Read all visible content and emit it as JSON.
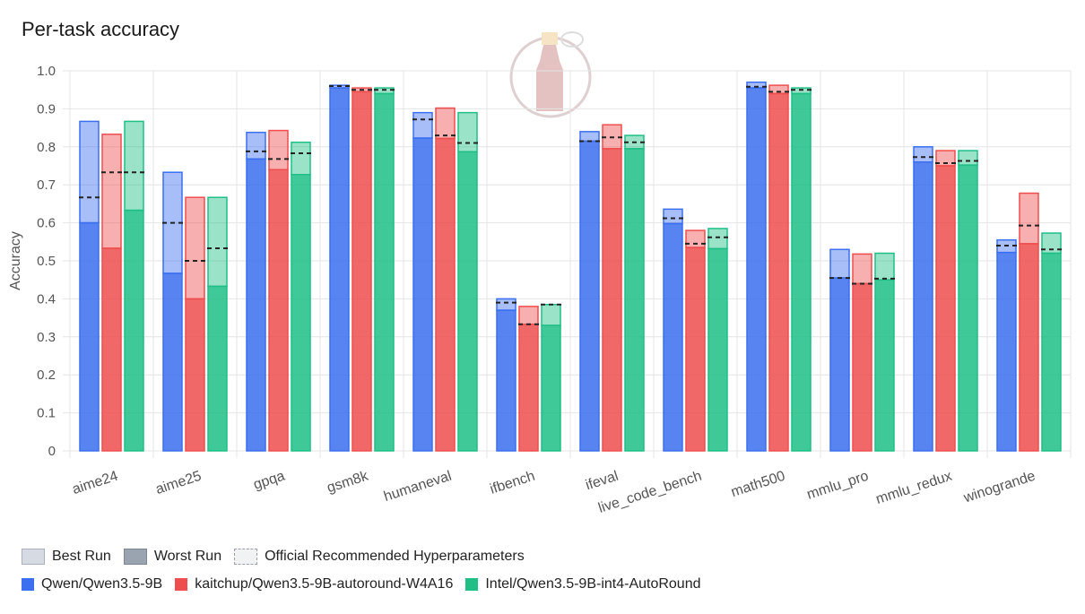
{
  "title": "Per-task accuracy",
  "colors": {
    "qwen": "#3b6ff0",
    "kaitchup": "#ef4e4e",
    "intel": "#1fbf86"
  },
  "legend": {
    "best_run": "Best Run",
    "worst_run": "Worst Run",
    "official": "Official Recommended Hyperparameters",
    "models": [
      "Qwen/Qwen3.5-9B",
      "kaitchup/Qwen3.5-9B-autoround-W4A16",
      "Intel/Qwen3.5-9B-int4-AutoRound"
    ]
  },
  "chart_data": {
    "type": "bar",
    "title": "Per-task accuracy",
    "ylabel": "Accuracy",
    "xlabel": "",
    "ylim": [
      0,
      1.0
    ],
    "yticks": [
      "0",
      "0.1",
      "0.2",
      "0.3",
      "0.4",
      "0.5",
      "0.6",
      "0.7",
      "0.8",
      "0.9",
      "1.0"
    ],
    "categories": [
      "aime24",
      "aime25",
      "gpqa",
      "gsm8k",
      "humaneval",
      "ifbench",
      "ifeval",
      "live_code_bench",
      "math500",
      "mmlu_pro",
      "mmlu_redux",
      "winogrande"
    ],
    "series": [
      {
        "name": "Qwen/Qwen3.5-9B",
        "color": "#3b6ff0",
        "best": [
          0.867,
          0.733,
          0.838,
          0.962,
          0.89,
          0.4,
          0.84,
          0.636,
          0.97,
          0.53,
          0.8,
          0.555
        ],
        "worst": [
          0.6,
          0.467,
          0.768,
          0.955,
          0.823,
          0.37,
          0.815,
          0.598,
          0.955,
          0.455,
          0.76,
          0.522
        ],
        "official": [
          0.667,
          0.6,
          0.788,
          0.96,
          0.872,
          0.39,
          0.815,
          0.612,
          0.958,
          0.455,
          0.773,
          0.54
        ]
      },
      {
        "name": "kaitchup/Qwen3.5-9B-autoround-W4A16",
        "color": "#ef4e4e",
        "best": [
          0.833,
          0.667,
          0.843,
          0.955,
          0.902,
          0.38,
          0.858,
          0.58,
          0.962,
          0.518,
          0.79,
          0.678
        ],
        "worst": [
          0.533,
          0.4,
          0.74,
          0.945,
          0.822,
          0.333,
          0.795,
          0.535,
          0.94,
          0.44,
          0.75,
          0.545
        ],
        "official": [
          0.733,
          0.5,
          0.768,
          0.95,
          0.83,
          0.333,
          0.825,
          0.545,
          0.945,
          0.44,
          0.757,
          0.593
        ]
      },
      {
        "name": "Intel/Qwen3.5-9B-int4-AutoRound",
        "color": "#1fbf86",
        "best": [
          0.867,
          0.667,
          0.812,
          0.955,
          0.89,
          0.385,
          0.83,
          0.585,
          0.955,
          0.52,
          0.79,
          0.573
        ],
        "worst": [
          0.633,
          0.433,
          0.727,
          0.94,
          0.787,
          0.33,
          0.795,
          0.532,
          0.94,
          0.45,
          0.752,
          0.52
        ],
        "official": [
          0.733,
          0.533,
          0.783,
          0.95,
          0.81,
          0.385,
          0.812,
          0.562,
          0.95,
          0.453,
          0.763,
          0.53
        ]
      }
    ]
  }
}
